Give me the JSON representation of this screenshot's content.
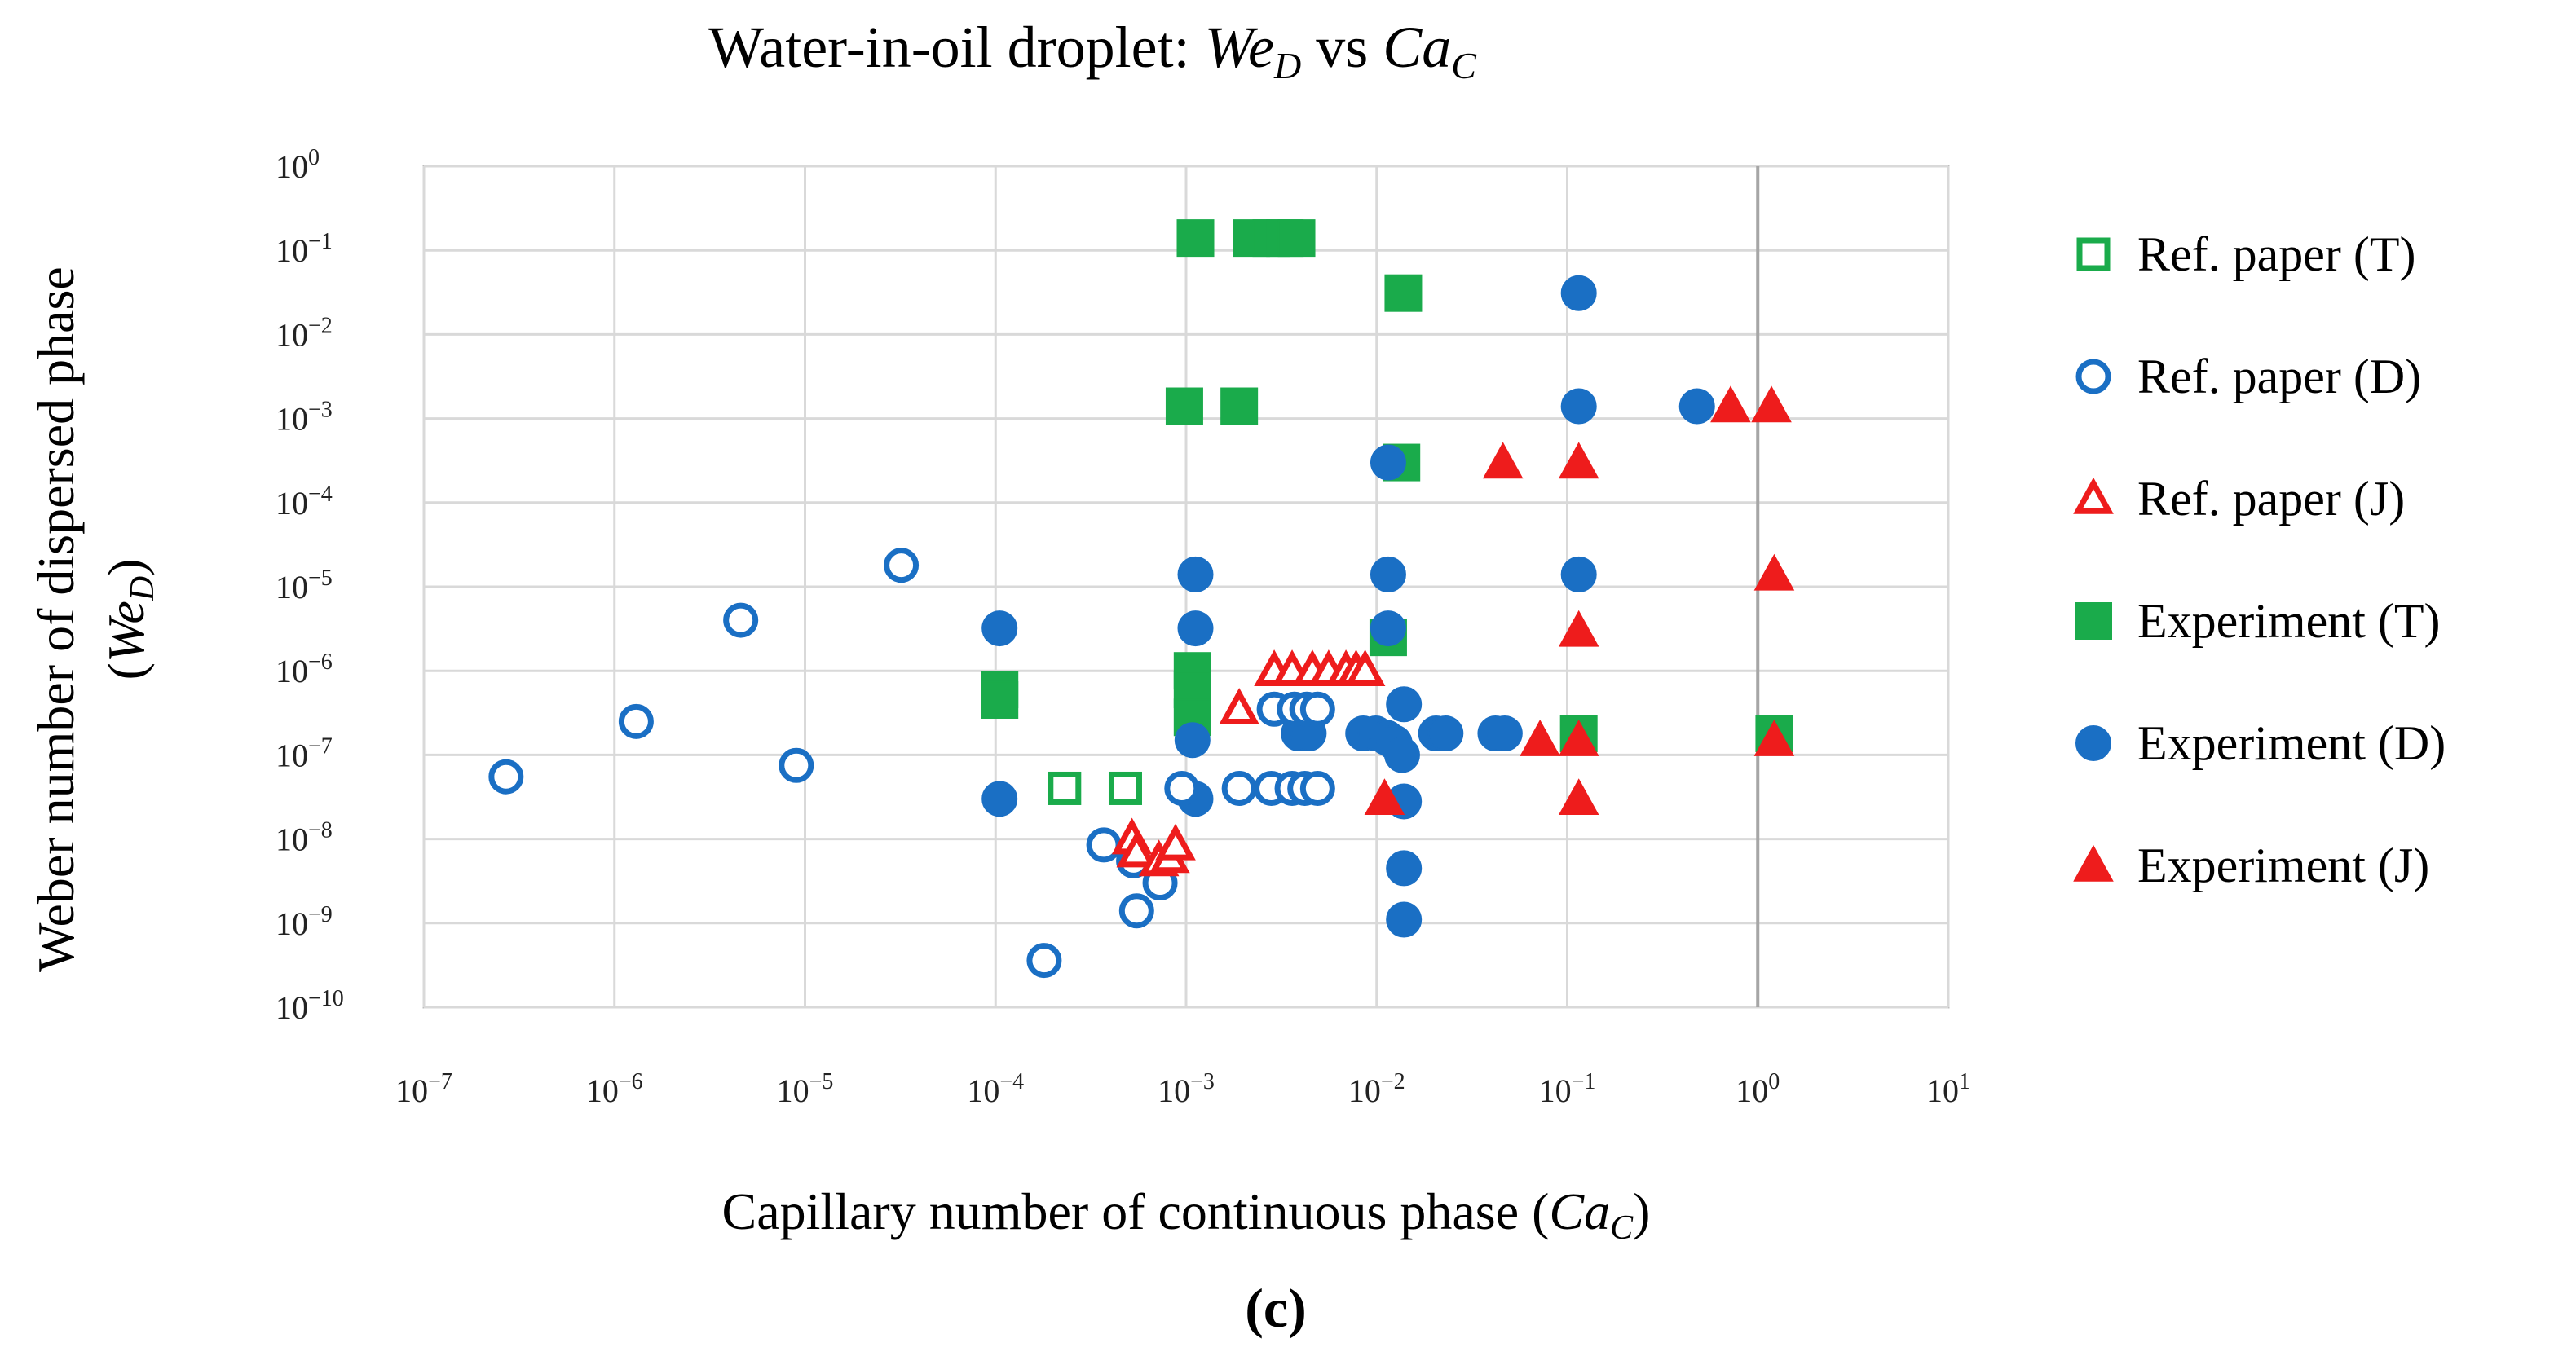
{
  "chart_data": {
    "type": "scatter",
    "title": {
      "prefix": "Water-in-oil droplet: ",
      "var1": "We",
      "sub1": "D",
      "mid": " vs ",
      "var2": "Ca",
      "sub2": "C"
    },
    "xlabel": {
      "text": "Capillary number of continuous phase (",
      "var": "Ca",
      "sub": "C",
      "close": ")"
    },
    "ylabel": {
      "line1": "Weber number of dispersed phase",
      "open": "(",
      "var": "We",
      "sub": "D",
      "close": ")"
    },
    "panel_label": "(c)",
    "x_scale": "log10",
    "y_scale": "log10",
    "xlim": [
      -7,
      1
    ],
    "ylim": [
      -10,
      0
    ],
    "x_ticks": [
      -7,
      -6,
      -5,
      -4,
      -3,
      -2,
      -1,
      0,
      1
    ],
    "y_ticks": [
      0,
      -1,
      -2,
      -3,
      -4,
      -5,
      -6,
      -7,
      -8,
      -9,
      -10
    ],
    "tick_base": "10",
    "grid": true,
    "legend_position": "right",
    "colors": {
      "green": "#1aab4b",
      "blue": "#1a6fc4",
      "red": "#ee1c1c",
      "grid": "#d9d9d9",
      "axis": "#bfbfbf"
    },
    "series": [
      {
        "name": "Ref. paper (T)",
        "marker": "square",
        "filled": false,
        "color": "#1aab4b",
        "points": [
          [
            0.00023,
            4e-08
          ],
          [
            0.00048,
            4e-08
          ]
        ]
      },
      {
        "name": "Ref. paper (D)",
        "marker": "circle",
        "filled": false,
        "color": "#1a6fc4",
        "points": [
          [
            2.7e-07,
            5.5e-08
          ],
          [
            1.3e-06,
            2.5e-07
          ],
          [
            4.6e-06,
            4e-06
          ],
          [
            9e-06,
            7.5e-08
          ],
          [
            3.2e-05,
            1.8e-05
          ],
          [
            0.00018,
            3.6e-10
          ],
          [
            0.00037,
            8.5e-09
          ],
          [
            0.00053,
            5.5e-09
          ],
          [
            0.00055,
            1.4e-09
          ],
          [
            0.00073,
            3e-09
          ],
          [
            0.00095,
            4e-08
          ],
          [
            0.0019,
            4e-08
          ],
          [
            0.0028,
            4e-08
          ],
          [
            0.0036,
            4e-08
          ],
          [
            0.0042,
            4e-08
          ],
          [
            0.0049,
            4e-08
          ],
          [
            0.0029,
            3.5e-07
          ],
          [
            0.0037,
            3.5e-07
          ],
          [
            0.0043,
            3.5e-07
          ],
          [
            0.0049,
            3.5e-07
          ]
        ]
      },
      {
        "name": "Ref. paper (J)",
        "marker": "triangle",
        "filled": false,
        "color": "#ee1c1c",
        "points": [
          [
            0.00052,
            1e-08
          ],
          [
            0.00055,
            7e-09
          ],
          [
            0.00072,
            5.5e-09
          ],
          [
            0.00082,
            6e-09
          ],
          [
            0.00088,
            8.5e-09
          ],
          [
            0.0019,
            3.5e-07
          ],
          [
            0.0029,
            1e-06
          ],
          [
            0.0036,
            1e-06
          ],
          [
            0.0046,
            1e-06
          ],
          [
            0.0056,
            1e-06
          ],
          [
            0.0069,
            1e-06
          ],
          [
            0.0078,
            1e-06
          ],
          [
            0.0087,
            1e-06
          ]
        ]
      },
      {
        "name": "Experiment (T)",
        "marker": "square",
        "filled": true,
        "color": "#1aab4b",
        "points": [
          [
            0.000105,
            6e-07
          ],
          [
            0.000105,
            4.5e-07
          ],
          [
            0.00108,
            1e-06
          ],
          [
            0.00108,
            6e-07
          ],
          [
            0.00108,
            2.8e-07
          ],
          [
            0.00112,
            0.14
          ],
          [
            0.0022,
            0.14
          ],
          [
            0.0028,
            0.14
          ],
          [
            0.0033,
            0.14
          ],
          [
            0.0038,
            0.14
          ],
          [
            0.00098,
            0.0014
          ],
          [
            0.0019,
            0.0014
          ],
          [
            0.0138,
            0.031
          ],
          [
            0.0135,
            0.0003
          ],
          [
            0.0115,
            2.5e-06
          ],
          [
            0.115,
            1.8e-07
          ],
          [
            1.22,
            1.8e-07
          ]
        ]
      },
      {
        "name": "Experiment (D)",
        "marker": "circle",
        "filled": true,
        "color": "#1a6fc4",
        "points": [
          [
            0.000105,
            3.2e-06
          ],
          [
            0.000105,
            3e-08
          ],
          [
            0.00112,
            1.4e-05
          ],
          [
            0.00112,
            3.2e-06
          ],
          [
            0.00108,
            1.5e-07
          ],
          [
            0.00112,
            3e-08
          ],
          [
            0.0039,
            1.8e-07
          ],
          [
            0.0044,
            1.8e-07
          ],
          [
            0.0085,
            1.8e-07
          ],
          [
            0.0099,
            1.8e-07
          ],
          [
            0.0113,
            1.6e-07
          ],
          [
            0.0124,
            1.4e-07
          ],
          [
            0.0136,
            1e-07
          ],
          [
            0.0115,
            0.0003
          ],
          [
            0.0115,
            1.4e-05
          ],
          [
            0.0115,
            3.2e-06
          ],
          [
            0.0139,
            4e-07
          ],
          [
            0.0139,
            2.8e-08
          ],
          [
            0.0139,
            4.5e-09
          ],
          [
            0.0139,
            1.1e-09
          ],
          [
            0.0205,
            1.8e-07
          ],
          [
            0.023,
            1.8e-07
          ],
          [
            0.042,
            1.8e-07
          ],
          [
            0.047,
            1.8e-07
          ],
          [
            0.115,
            0.031
          ],
          [
            0.115,
            0.0014
          ],
          [
            0.115,
            1.4e-05
          ],
          [
            0.48,
            0.0014
          ]
        ]
      },
      {
        "name": "Experiment (J)",
        "marker": "triangle",
        "filled": true,
        "color": "#ee1c1c",
        "points": [
          [
            0.011,
            3e-08
          ],
          [
            0.046,
            0.0003
          ],
          [
            0.072,
            1.5e-07
          ],
          [
            0.115,
            0.0003
          ],
          [
            0.115,
            3e-06
          ],
          [
            0.115,
            1.5e-07
          ],
          [
            0.115,
            3e-08
          ],
          [
            0.72,
            0.0014
          ],
          [
            1.18,
            0.0014
          ],
          [
            1.22,
            1.4e-05
          ],
          [
            1.22,
            1.5e-07
          ]
        ]
      }
    ]
  }
}
